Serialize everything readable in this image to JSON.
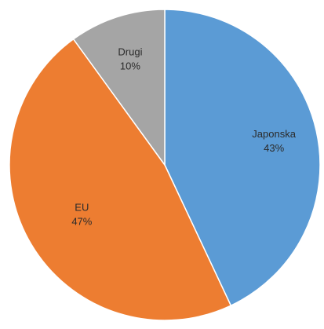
{
  "chart_data": {
    "type": "pie",
    "title": "",
    "slices": [
      {
        "label": "Japonska",
        "value": 43,
        "value_label": "43%",
        "color": "#5b9bd5"
      },
      {
        "label": "EU",
        "value": 47,
        "value_label": "47%",
        "color": "#ed7d31"
      },
      {
        "label": "Drugi",
        "value": 10,
        "value_label": "10%",
        "color": "#a5a5a5"
      }
    ],
    "start": "12 o'clock",
    "direction": "clockwise",
    "legend": "none",
    "labels": "inside"
  }
}
